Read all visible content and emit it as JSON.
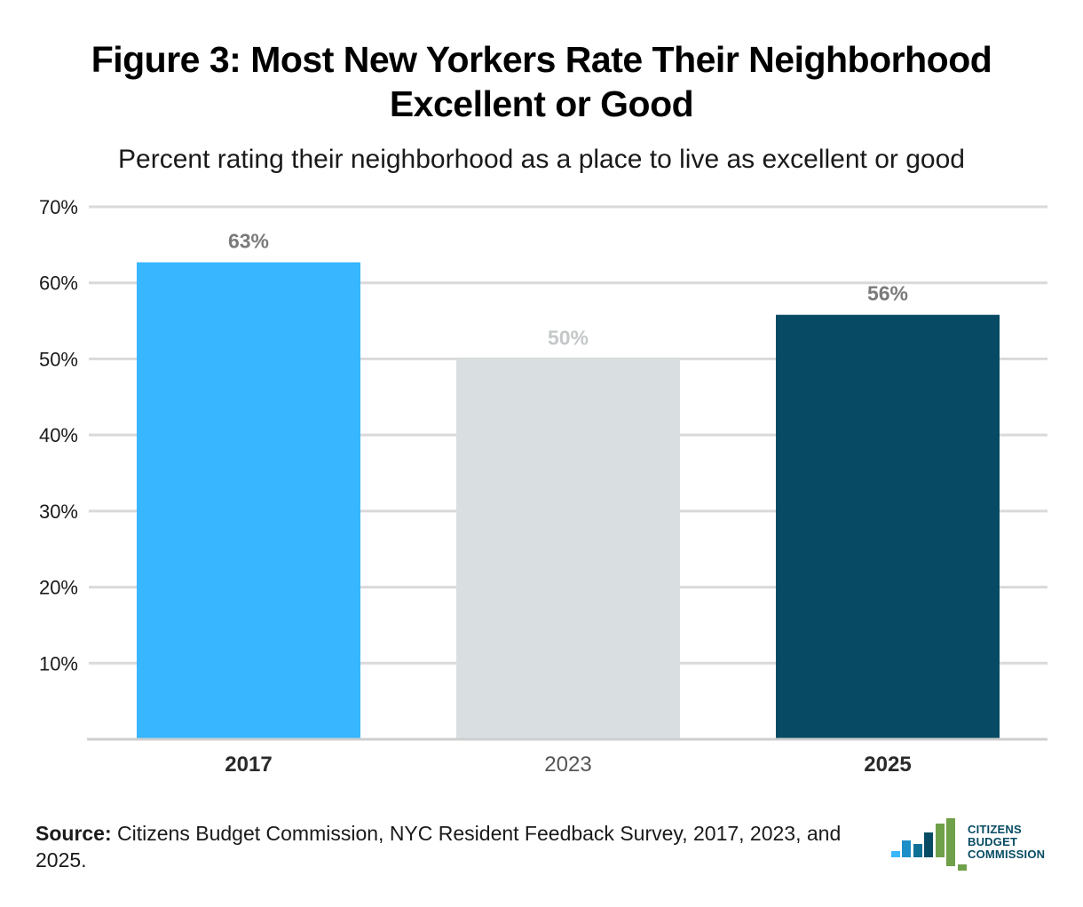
{
  "title_line1": "Figure 3: Most New Yorkers Rate Their Neighborhood",
  "title_line2": "Excellent or Good",
  "subtitle": "Percent rating their neighborhood as a place to live as excellent or good",
  "source_label": "Source:",
  "source_text": " Citizens Budget Commission, NYC Resident Feedback Survey, 2017, 2023, and 2025.",
  "logo": {
    "line1": "CITIZENS",
    "line2": "BUDGET",
    "line3": "COMMISSION"
  },
  "chart_data": {
    "type": "bar",
    "title": "Figure 3: Most New Yorkers Rate Their Neighborhood Excellent or Good",
    "subtitle": "Percent rating their neighborhood as a place to live as excellent or good",
    "categories": [
      "2017",
      "2023",
      "2025"
    ],
    "values": [
      62.7,
      50.0,
      55.8
    ],
    "data_labels": [
      "63%",
      "50%",
      "56%"
    ],
    "colors": [
      "#38b6ff",
      "#d9dfe0",
      "#064b63"
    ],
    "label_colors": [
      "#7a7a7a",
      "#c4c8c9",
      "#7a7a7a"
    ],
    "category_bold": [
      true,
      false,
      true
    ],
    "ylim": [
      0,
      70
    ],
    "yticks": [
      10,
      20,
      30,
      40,
      50,
      60,
      70
    ],
    "ytick_labels": [
      "10%",
      "20%",
      "30%",
      "40%",
      "50%",
      "60%",
      "70%"
    ],
    "grid": true,
    "xlabel": "",
    "ylabel": ""
  }
}
